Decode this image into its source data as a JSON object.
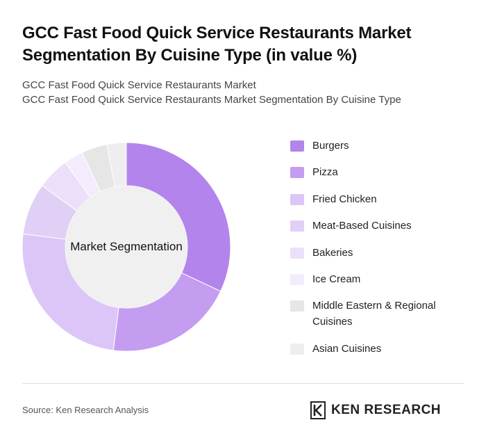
{
  "title": "GCC Fast Food Quick Service Restaurants Market Segmentation By Cuisine Type (in value %)",
  "subtitle_line1": "GCC Fast Food Quick Service Restaurants Market",
  "subtitle_line2": "GCC Fast Food Quick Service Restaurants Market Segmentation By Cuisine Type",
  "source": "Source: Ken Research Analysis",
  "brand": {
    "name": "KEN RESEARCH",
    "icon": "ken-research-logo"
  },
  "chart_data": {
    "type": "pie",
    "variant": "donut",
    "center_label": "Market Segmentation",
    "legend_position": "right",
    "categories": [
      "Burgers",
      "Pizza",
      "Fried Chicken",
      "Meat-Based Cuisines",
      "Bakeries",
      "Ice Cream",
      "Middle Eastern & Regional Cuisines",
      "Asian Cuisines"
    ],
    "values": [
      32,
      20,
      25,
      8,
      5,
      3,
      4,
      3
    ],
    "colors": [
      "#b384ec",
      "#c49cf0",
      "#dcc6f7",
      "#e0d0f6",
      "#ebdff9",
      "#f3ecfc",
      "#e6e6e6",
      "#eeeeee"
    ]
  }
}
